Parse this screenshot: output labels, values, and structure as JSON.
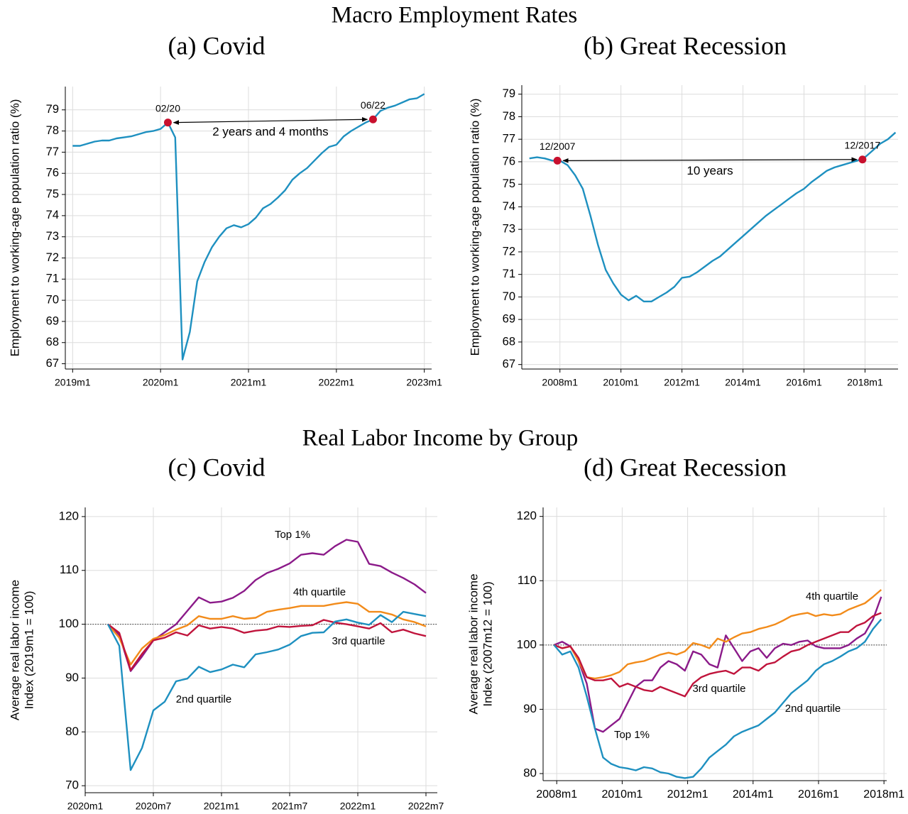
{
  "headings": [
    "Macro Employment Rates",
    "Real Labor Income by Group"
  ],
  "chart_data": [
    {
      "type": "line",
      "title": "(a) Covid",
      "ylabel": "Employment to working-age population ratio (%)",
      "color": "#1e90c0",
      "grid": true,
      "x": [
        "2019m1",
        "2019m2",
        "2019m3",
        "2019m4",
        "2019m5",
        "2019m6",
        "2019m7",
        "2019m8",
        "2019m9",
        "2019m10",
        "2019m11",
        "2019m12",
        "2020m1",
        "2020m2",
        "2020m3",
        "2020m4",
        "2020m5",
        "2020m6",
        "2020m7",
        "2020m8",
        "2020m9",
        "2020m10",
        "2020m11",
        "2020m12",
        "2021m1",
        "2021m2",
        "2021m3",
        "2021m4",
        "2021m5",
        "2021m6",
        "2021m7",
        "2021m8",
        "2021m9",
        "2021m10",
        "2021m11",
        "2021m12",
        "2022m1",
        "2022m2",
        "2022m3",
        "2022m4",
        "2022m5",
        "2022m6",
        "2022m7",
        "2022m8",
        "2022m9",
        "2022m10",
        "2022m11",
        "2022m12",
        "2023m1"
      ],
      "values": [
        77.3,
        77.3,
        77.4,
        77.5,
        77.55,
        77.55,
        77.65,
        77.7,
        77.75,
        77.85,
        77.95,
        78.0,
        78.1,
        78.4,
        77.7,
        67.2,
        68.5,
        70.9,
        71.8,
        72.5,
        73.0,
        73.4,
        73.55,
        73.45,
        73.6,
        73.9,
        74.35,
        74.55,
        74.85,
        75.2,
        75.7,
        76.0,
        76.25,
        76.6,
        76.95,
        77.25,
        77.35,
        77.75,
        78.0,
        78.2,
        78.4,
        78.55,
        78.95,
        79.1,
        79.2,
        79.35,
        79.5,
        79.55,
        79.75
      ],
      "xlim": [
        "2018m12",
        "2023m2"
      ],
      "xticks": [
        "2019m1",
        "2020m1",
        "2021m1",
        "2022m1",
        "2023m1"
      ],
      "ylim": [
        66.75,
        80.1
      ],
      "yticks": [
        67,
        68,
        69,
        70,
        71,
        72,
        73,
        74,
        75,
        76,
        77,
        78,
        79
      ],
      "markers": [
        {
          "label": "02/20",
          "x": "2020m2",
          "y": 78.4
        },
        {
          "label": "06/22",
          "x": "2022m6",
          "y": 78.55
        }
      ],
      "marker_color": "#c8102e",
      "span_label": "2 years and 4 months"
    },
    {
      "type": "line",
      "title": "(b) Great Recession",
      "ylabel": "Employment to working-age population ratio (%)",
      "color": "#1e90c0",
      "grid": true,
      "x": [
        "2007m1",
        "2007m4",
        "2007m7",
        "2007m10",
        "2008m1",
        "2008m4",
        "2008m7",
        "2008m10",
        "2009m1",
        "2009m4",
        "2009m7",
        "2009m10",
        "2010m1",
        "2010m4",
        "2010m7",
        "2010m10",
        "2011m1",
        "2011m4",
        "2011m7",
        "2011m10",
        "2012m1",
        "2012m4",
        "2012m7",
        "2012m10",
        "2013m1",
        "2013m4",
        "2013m7",
        "2013m10",
        "2014m1",
        "2014m4",
        "2014m7",
        "2014m10",
        "2015m1",
        "2015m4",
        "2015m7",
        "2015m10",
        "2016m1",
        "2016m4",
        "2016m7",
        "2016m10",
        "2017m1",
        "2017m4",
        "2017m7",
        "2017m10",
        "2018m1",
        "2018m4",
        "2018m7",
        "2018m10",
        "2019m1"
      ],
      "values": [
        76.15,
        76.2,
        76.15,
        76.05,
        76.05,
        75.85,
        75.4,
        74.8,
        73.6,
        72.3,
        71.2,
        70.6,
        70.1,
        69.85,
        70.05,
        69.8,
        69.8,
        70.0,
        70.2,
        70.45,
        70.85,
        70.9,
        71.1,
        71.35,
        71.6,
        71.8,
        72.1,
        72.4,
        72.7,
        73.0,
        73.3,
        73.6,
        73.85,
        74.1,
        74.35,
        74.6,
        74.8,
        75.1,
        75.35,
        75.6,
        75.75,
        75.85,
        75.95,
        76.05,
        76.2,
        76.5,
        76.8,
        77.0,
        77.3
      ],
      "xlim": [
        "2006m10",
        "2019m2"
      ],
      "xticks": [
        "2008m1",
        "2010m1",
        "2012m1",
        "2014m1",
        "2016m1",
        "2018m1"
      ],
      "ylim": [
        66.8,
        79.4
      ],
      "yticks": [
        67,
        68,
        69,
        70,
        71,
        72,
        73,
        74,
        75,
        76,
        77,
        78,
        79
      ],
      "markers": [
        {
          "label": "12/2007",
          "x": "2007m12",
          "y": 76.05
        },
        {
          "label": "12/2017",
          "x": "2017m12",
          "y": 76.1
        }
      ],
      "marker_color": "#c8102e",
      "span_label": "10 years"
    },
    {
      "type": "line",
      "title": "(c) Covid",
      "ylabel": [
        "Average real labor income",
        "Index (2019m1 = 100)"
      ],
      "grid": true,
      "refline": 100,
      "x": [
        "2020m3",
        "2020m4",
        "2020m5",
        "2020m6",
        "2020m7",
        "2020m8",
        "2020m9",
        "2020m10",
        "2020m11",
        "2020m12",
        "2021m1",
        "2021m2",
        "2021m3",
        "2021m4",
        "2021m5",
        "2021m6",
        "2021m7",
        "2021m8",
        "2021m9",
        "2021m10",
        "2021m11",
        "2021m12",
        "2022m1",
        "2022m2",
        "2022m3",
        "2022m4",
        "2022m5",
        "2022m6",
        "2022m7"
      ],
      "series": [
        {
          "name": "Top 1%",
          "color": "#8b1a89",
          "values": [
            100,
            98,
            91.3,
            94,
            97,
            98.5,
            100,
            102.5,
            105,
            104,
            104.2,
            104.9,
            106.2,
            108.2,
            109.5,
            110.3,
            111.3,
            112.9,
            113.2,
            112.9,
            114.5,
            115.7,
            115.3,
            111.2,
            110.8,
            109.6,
            108.6,
            107.4,
            105.8
          ]
        },
        {
          "name": "4th quartile",
          "color": "#f28b1a",
          "values": [
            100,
            97.5,
            92.5,
            95.5,
            97.3,
            98,
            99,
            99.8,
            101.5,
            101,
            101,
            101.5,
            101,
            101.2,
            102.3,
            102.7,
            103,
            103.4,
            103.4,
            103.4,
            103.8,
            104.1,
            103.8,
            102.3,
            102.3,
            101.8,
            100.9,
            100.4,
            99.6
          ]
        },
        {
          "name": "3rd quartile",
          "color": "#c0143c",
          "values": [
            100,
            98.4,
            91.5,
            94.5,
            97,
            97.5,
            98.5,
            97.9,
            99.8,
            99.2,
            99.5,
            99.2,
            98.4,
            98.8,
            99,
            99.6,
            99.5,
            99.7,
            99.8,
            100.8,
            100.3,
            100,
            99.6,
            99.2,
            100.2,
            98.5,
            99,
            98.3,
            97.8
          ]
        },
        {
          "name": "2nd quartile",
          "color": "#1e90c0",
          "values": [
            100,
            96,
            72.9,
            77,
            84,
            85.6,
            89.4,
            89.9,
            92.1,
            91.1,
            91.6,
            92.5,
            92,
            94.4,
            94.8,
            95.3,
            96.2,
            97.8,
            98.4,
            98.5,
            100.5,
            100.9,
            100.3,
            99.9,
            101.7,
            100.4,
            102.3,
            101.9,
            101.5
          ]
        }
      ],
      "xlim": [
        "2020m1",
        "2022m8"
      ],
      "xticks": [
        "2020m1",
        "2020m7",
        "2021m1",
        "2021m7",
        "2022m1",
        "2022m7"
      ],
      "ylim": [
        68.7,
        121.7
      ],
      "yticks": [
        70,
        80,
        90,
        100,
        110,
        120
      ]
    },
    {
      "type": "line",
      "title": "(d) Great Recession",
      "ylabel": [
        "Average real labor income",
        "Index (2007m12 = 100)"
      ],
      "grid": true,
      "refline": 100,
      "x": [
        "2007m12",
        "2008m3",
        "2008m6",
        "2008m9",
        "2008m12",
        "2009m3",
        "2009m6",
        "2009m9",
        "2009m12",
        "2010m3",
        "2010m6",
        "2010m9",
        "2010m12",
        "2011m3",
        "2011m6",
        "2011m9",
        "2011m12",
        "2012m3",
        "2012m6",
        "2012m9",
        "2012m12",
        "2013m3",
        "2013m6",
        "2013m9",
        "2013m12",
        "2014m3",
        "2014m6",
        "2014m9",
        "2014m12",
        "2015m3",
        "2015m6",
        "2015m9",
        "2015m12",
        "2016m3",
        "2016m6",
        "2016m9",
        "2016m12",
        "2017m3",
        "2017m6",
        "2017m9",
        "2017m12"
      ],
      "series": [
        {
          "name": "Top 1%",
          "color": "#8b1a89",
          "values": [
            100,
            100.5,
            99.8,
            97.5,
            94,
            87,
            86.5,
            87.5,
            88.5,
            91,
            93.5,
            94.5,
            94.5,
            96.5,
            97.5,
            97,
            96,
            99,
            98.5,
            97,
            96.5,
            101.5,
            99.5,
            97.5,
            99,
            99.5,
            98,
            99.5,
            100.2,
            100,
            100.5,
            100.7,
            99.8,
            99.5,
            99.5,
            99.5,
            100,
            101,
            101.8,
            104,
            107.5
          ]
        },
        {
          "name": "4th quartile",
          "color": "#f28b1a",
          "values": [
            100,
            99.5,
            99.8,
            97.5,
            95,
            94.8,
            95,
            95.3,
            95.8,
            97,
            97.3,
            97.5,
            98,
            98.5,
            98.8,
            98.5,
            99,
            100.3,
            100,
            99.5,
            101,
            100.5,
            101.2,
            101.8,
            102,
            102.5,
            102.8,
            103.2,
            103.8,
            104.5,
            104.8,
            105,
            104.5,
            104.8,
            104.6,
            104.8,
            105.5,
            106,
            106.5,
            107.5,
            108.6
          ]
        },
        {
          "name": "3rd quartile",
          "color": "#c0143c",
          "values": [
            100,
            99.5,
            99.8,
            98,
            95,
            94.5,
            94.5,
            94.8,
            93.5,
            94,
            93.5,
            93,
            92.8,
            93.5,
            93,
            92.5,
            92,
            94,
            95,
            95.5,
            95.8,
            96,
            95.5,
            96.5,
            96.5,
            96,
            97,
            97.3,
            98.2,
            99,
            99.3,
            100,
            100.5,
            101,
            101.5,
            102,
            102,
            103,
            103.5,
            104.5,
            105
          ]
        },
        {
          "name": "2nd quartile",
          "color": "#1e90c0",
          "values": [
            100,
            98.5,
            99,
            96.5,
            92,
            87,
            82.5,
            81.5,
            81,
            80.8,
            80.5,
            81,
            80.8,
            80.2,
            80,
            79.5,
            79.3,
            79.5,
            80.8,
            82.5,
            83.5,
            84.5,
            85.8,
            86.5,
            87,
            87.5,
            88.5,
            89.5,
            91,
            92.5,
            93.5,
            94.5,
            96,
            97,
            97.5,
            98.2,
            99,
            99.5,
            100.5,
            102.5,
            104
          ]
        }
      ],
      "xlim": [
        "2007m8",
        "2018m2"
      ],
      "xticks": [
        "2008m1",
        "2010m1",
        "2012m1",
        "2014m1",
        "2016m1",
        "2018m1"
      ],
      "ylim": [
        78.9,
        121.4
      ],
      "yticks": [
        80,
        90,
        100,
        110,
        120
      ]
    }
  ]
}
